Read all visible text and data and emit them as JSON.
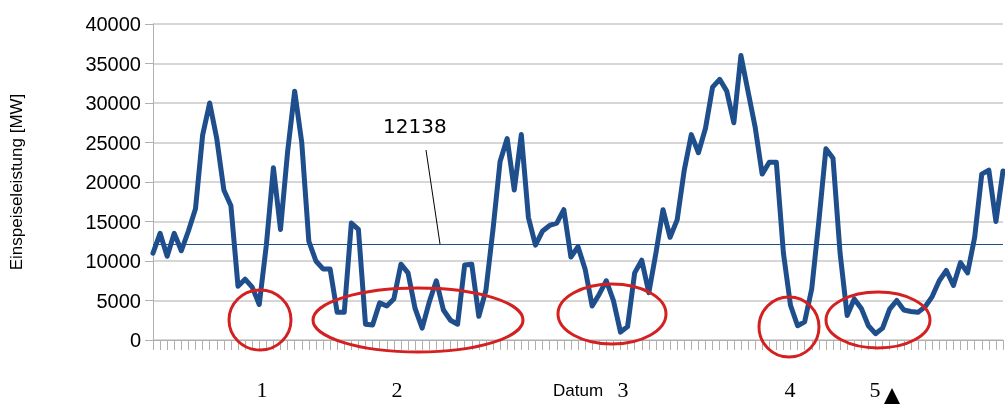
{
  "chart_data": {
    "type": "line",
    "xlabel": "Datum",
    "ylabel": "Einspeiseleistung [MW]",
    "categories": [
      null,
      null,
      null,
      null,
      null,
      null,
      null,
      null,
      null,
      null,
      null,
      null,
      null,
      null,
      null,
      null,
      null,
      null,
      null,
      null,
      null,
      null,
      null,
      null,
      null,
      null,
      null,
      null,
      null,
      null,
      null,
      null,
      null,
      null,
      null,
      null,
      null,
      null,
      null,
      null,
      null,
      null,
      null,
      null,
      null,
      null,
      null,
      null,
      null,
      null,
      null,
      null,
      null,
      null,
      null,
      null,
      null,
      null,
      null,
      null,
      null,
      null,
      null,
      null,
      null,
      null,
      null,
      null,
      null,
      null,
      null,
      null,
      null,
      null,
      null,
      null,
      null,
      null,
      null,
      null,
      null,
      null,
      null,
      null,
      null,
      null,
      null,
      null,
      null,
      null,
      null,
      null,
      null,
      null,
      null,
      null,
      null,
      null,
      null,
      null,
      null,
      null,
      null,
      null,
      null,
      null,
      null,
      null,
      null,
      null,
      null,
      null,
      null,
      null,
      null,
      null,
      null,
      null,
      null,
      null,
      null
    ],
    "values": [
      11000,
      13500,
      10600,
      13500,
      11300,
      13800,
      16600,
      25900,
      30000,
      25500,
      19000,
      17000,
      6800,
      7700,
      6700,
      4500,
      12000,
      21800,
      14000,
      23800,
      31500,
      25000,
      12500,
      10000,
      9000,
      9000,
      3500,
      3500,
      14800,
      14000,
      2000,
      1900,
      4700,
      4300,
      5200,
      9600,
      8500,
      4000,
      1500,
      4800,
      7500,
      3800,
      2500,
      2000,
      9500,
      9600,
      3000,
      6300,
      14000,
      22600,
      25500,
      19000,
      26000,
      15500,
      12000,
      13800,
      14500,
      14800,
      16500,
      10500,
      11800,
      9000,
      4300,
      5800,
      7500,
      5000,
      1000,
      1700,
      8500,
      10100,
      6000,
      11000,
      16500,
      13000,
      15200,
      21500,
      26000,
      23700,
      26800,
      32000,
      33000,
      31500,
      27500,
      36000,
      31500,
      27000,
      21000,
      22500,
      22500,
      11000,
      4400,
      1800,
      2300,
      6500,
      15000,
      24200,
      23000,
      11000,
      3100,
      5200,
      4000,
      1800,
      800,
      1500,
      3900,
      5000,
      3800,
      3600,
      3500,
      4200,
      5500,
      7500,
      8800,
      6900,
      9800,
      8500,
      13000,
      21000,
      21500,
      15000,
      21400
    ],
    "color": "#1f4e8c",
    "ylim": [
      0,
      40000
    ],
    "yticks": [
      0,
      5000,
      10000,
      15000,
      20000,
      25000,
      30000,
      35000,
      40000
    ],
    "grid": "y",
    "line_style": "solid",
    "tick_labels": "y",
    "ref_lines": [
      {
        "axis": "y",
        "value": 12138,
        "label": "12138",
        "color": "#1f4e8c"
      }
    ],
    "annotations": [
      "1",
      "2",
      "3",
      "4",
      "5"
    ]
  }
}
